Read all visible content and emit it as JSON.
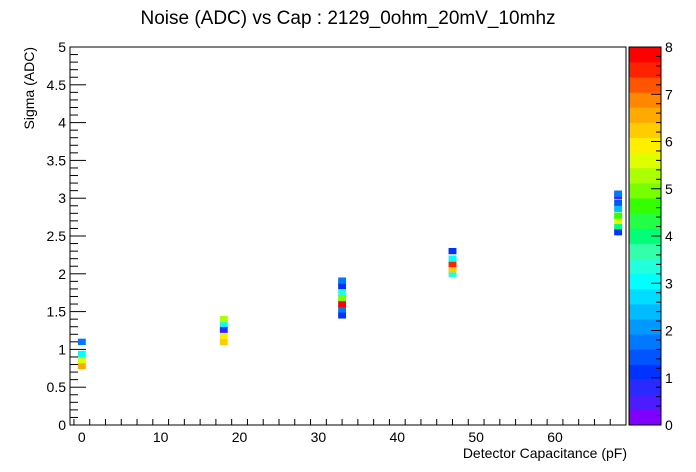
{
  "chart_data": {
    "type": "heatmap",
    "title": "Noise (ADC) vs Cap : 2129_0ohm_20mV_10mhz",
    "xlabel": "Detector Capacitance (pF)",
    "ylabel": "Sigma (ADC)",
    "xlim": [
      -1.5,
      69
    ],
    "ylim": [
      0,
      5
    ],
    "zlim": [
      0,
      8
    ],
    "x_ticks": [
      "0",
      "10",
      "20",
      "30",
      "40",
      "50",
      "60"
    ],
    "y_ticks": [
      "0",
      "0.5",
      "1",
      "1.5",
      "2",
      "2.5",
      "3",
      "3.5",
      "4",
      "4.5",
      "5"
    ],
    "z_ticks": [
      "0",
      "1",
      "2",
      "3",
      "4",
      "5",
      "6",
      "7",
      "8"
    ],
    "grid": false,
    "palette": [
      "#7f00ff",
      "#4c1cff",
      "#2a2aff",
      "#0033ff",
      "#0055ff",
      "#0077ff",
      "#0099ff",
      "#00bbff",
      "#00ddff",
      "#00ffff",
      "#22ffdd",
      "#33ffaa",
      "#00ff77",
      "#22ff44",
      "#33ff00",
      "#77ff00",
      "#aaff00",
      "#ddff00",
      "#ffee00",
      "#ffcc00",
      "#ffaa00",
      "#ff8800",
      "#ff5500",
      "#ff2200",
      "#ff0000"
    ],
    "bin_width_x": 1.0,
    "bin_height_y": 0.0833,
    "cells": [
      {
        "x": 0,
        "y": 0.78,
        "z": 6.5
      },
      {
        "x": 0,
        "y": 0.86,
        "z": 5.6
      },
      {
        "x": 0,
        "y": 0.94,
        "z": 3.0
      },
      {
        "x": 0,
        "y": 1.1,
        "z": 1.9
      },
      {
        "x": 18,
        "y": 1.1,
        "z": 6.2
      },
      {
        "x": 18,
        "y": 1.18,
        "z": 5.8
      },
      {
        "x": 18,
        "y": 1.26,
        "z": 0.7
      },
      {
        "x": 18,
        "y": 1.34,
        "z": 3.0
      },
      {
        "x": 18,
        "y": 1.4,
        "z": 5.2
      },
      {
        "x": 33,
        "y": 1.45,
        "z": 1.2
      },
      {
        "x": 33,
        "y": 1.53,
        "z": 1.7
      },
      {
        "x": 33,
        "y": 1.6,
        "z": 7.7
      },
      {
        "x": 33,
        "y": 1.68,
        "z": 4.8
      },
      {
        "x": 33,
        "y": 1.76,
        "z": 3.2
      },
      {
        "x": 33,
        "y": 1.84,
        "z": 1.1
      },
      {
        "x": 33,
        "y": 1.91,
        "z": 1.9
      },
      {
        "x": 47,
        "y": 2.0,
        "z": 3.4
      },
      {
        "x": 47,
        "y": 2.06,
        "z": 6.3
      },
      {
        "x": 47,
        "y": 2.13,
        "z": 7.6
      },
      {
        "x": 47,
        "y": 2.2,
        "z": 3.0
      },
      {
        "x": 47,
        "y": 2.3,
        "z": 1.0
      },
      {
        "x": 68,
        "y": 2.55,
        "z": 1.1
      },
      {
        "x": 68,
        "y": 2.63,
        "z": 4.0
      },
      {
        "x": 68,
        "y": 2.7,
        "z": 5.7
      },
      {
        "x": 68,
        "y": 2.77,
        "z": 4.5
      },
      {
        "x": 68,
        "y": 2.86,
        "z": 2.5
      },
      {
        "x": 68,
        "y": 2.94,
        "z": 1.4
      },
      {
        "x": 68,
        "y": 3.03,
        "z": 0.5
      },
      {
        "x": 68,
        "y": 3.06,
        "z": 1.8
      }
    ]
  }
}
